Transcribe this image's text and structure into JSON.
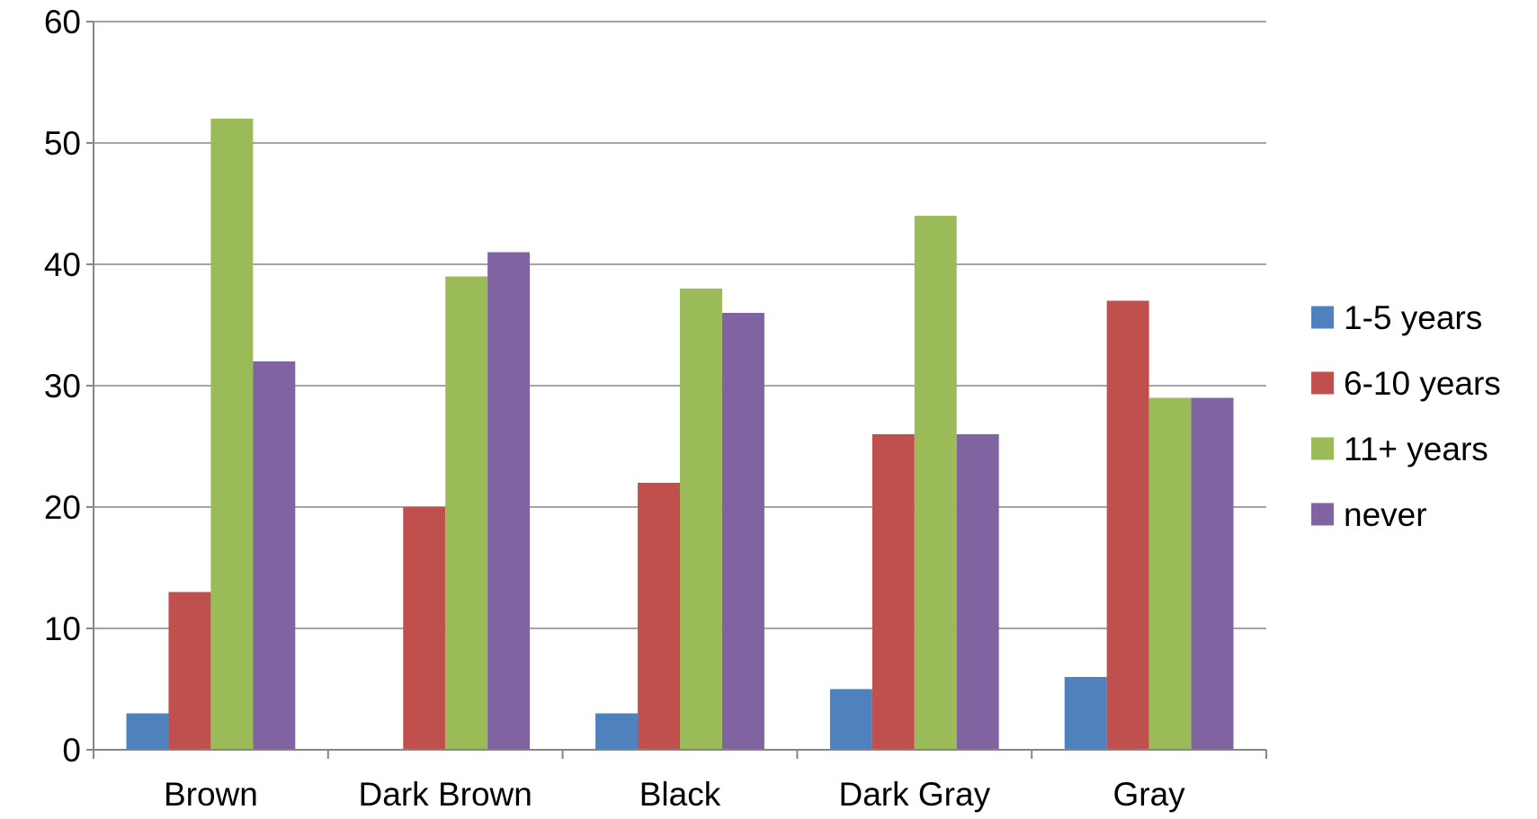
{
  "chart_data": {
    "type": "bar",
    "title": "",
    "xlabel": "",
    "ylabel": "",
    "categories": [
      "Brown",
      "Dark Brown",
      "Black",
      "Dark Gray",
      "Gray"
    ],
    "series": [
      {
        "name": "1-5 years",
        "color": "#4F81BD",
        "values": [
          3,
          0,
          3,
          5,
          6
        ]
      },
      {
        "name": "6-10 years",
        "color": "#C0504D",
        "values": [
          13,
          20,
          22,
          26,
          37
        ]
      },
      {
        "name": "11+ years",
        "color": "#9BBB59",
        "values": [
          52,
          39,
          38,
          44,
          29
        ]
      },
      {
        "name": "never",
        "color": "#8064A2",
        "values": [
          32,
          41,
          36,
          26,
          29
        ]
      }
    ],
    "ylim": [
      0,
      60
    ],
    "yticks": [
      "0",
      "10",
      "20",
      "30",
      "40",
      "50",
      "60"
    ],
    "grid": true,
    "legend_position": "right"
  }
}
